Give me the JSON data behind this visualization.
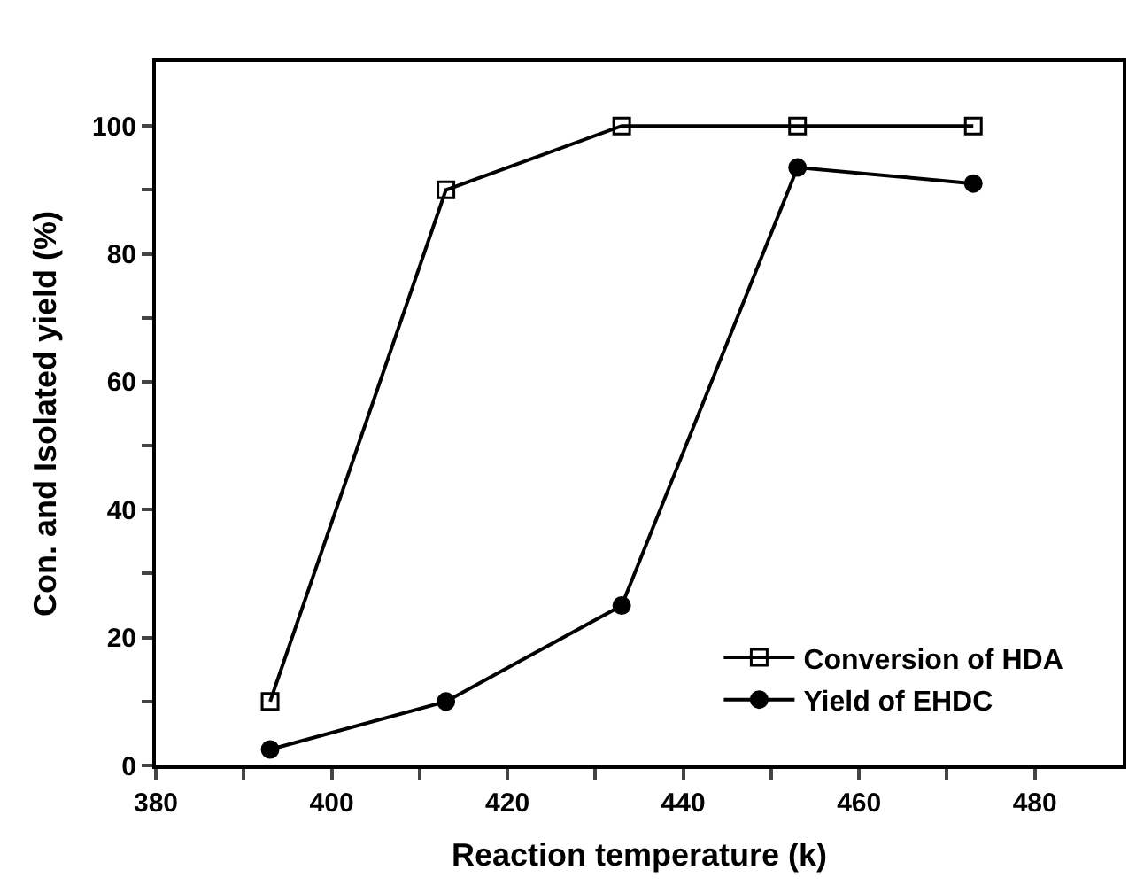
{
  "chart_data": {
    "type": "line",
    "xlabel": "Reaction temperature (k)",
    "ylabel": "Con. and Isolated yield (%)",
    "x": [
      393,
      413,
      433,
      453,
      473
    ],
    "series": [
      {
        "name": "Conversion of HDA",
        "color": "#000000",
        "marker": "square",
        "values": [
          10,
          90,
          100,
          100,
          100
        ]
      },
      {
        "name": "Yield of EHDC",
        "color": "#000000",
        "marker": "circle",
        "values": [
          2.5,
          10,
          25,
          93.5,
          91
        ]
      }
    ],
    "xlim": [
      380,
      490
    ],
    "xticks": [
      380,
      {
        "value": 390,
        "label": null
      },
      400,
      {
        "value": 410,
        "label": null
      },
      420,
      {
        "value": 430,
        "label": null
      },
      440,
      {
        "value": 450,
        "label": null
      },
      460,
      {
        "value": 470,
        "label": null
      },
      480
    ],
    "ylim": [
      0,
      110
    ],
    "yticks": [
      0,
      {
        "value": 10,
        "label": null
      },
      20,
      {
        "value": 30,
        "label": null
      },
      40,
      {
        "value": 50,
        "label": null
      },
      60,
      {
        "value": 70,
        "label": null
      },
      80,
      {
        "value": 90,
        "label": null
      },
      100
    ],
    "legend": "bottom right",
    "line_style": "solid"
  }
}
